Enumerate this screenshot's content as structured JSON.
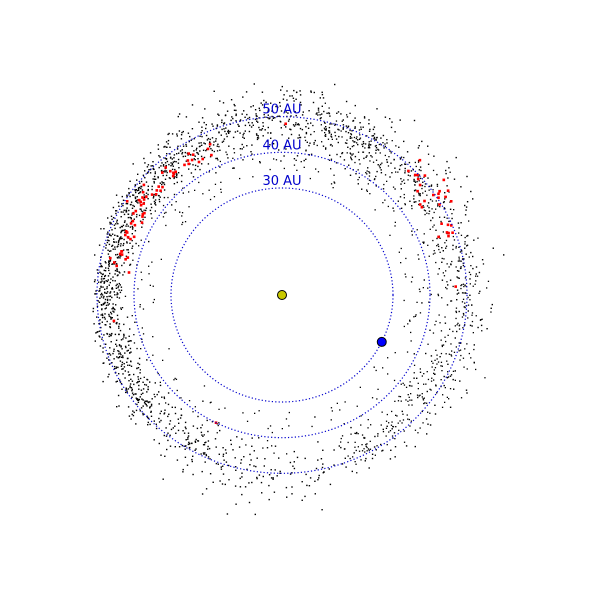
{
  "diagram": {
    "rings": [
      {
        "au": 30,
        "label": "30 AU"
      },
      {
        "au": 40,
        "label": "40 AU"
      },
      {
        "au": 50,
        "label": "50 AU"
      }
    ],
    "bodies": {
      "sun": {
        "name": "sun-marker",
        "color": "#c8c800"
      },
      "neptune": {
        "name": "neptune-marker",
        "color": "#0000ff",
        "angle_deg": -26
      }
    },
    "populations": {
      "kuiper_belt": {
        "color": "#000000"
      },
      "trojan_resonant": {
        "color": "#ff0000"
      }
    },
    "colors": {
      "ring": "#0000cc",
      "label": "#0000cc",
      "background": "#ffffff"
    }
  }
}
